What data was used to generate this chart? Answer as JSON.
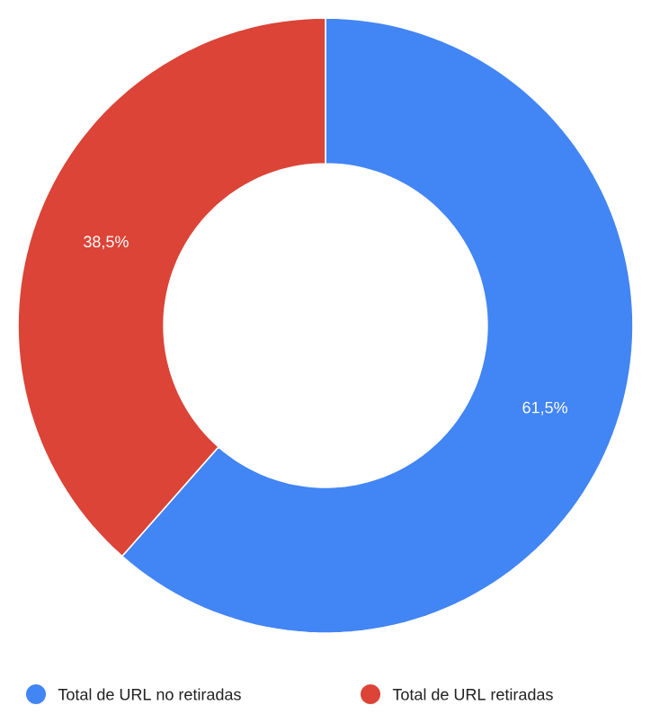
{
  "chart_data": {
    "type": "donut",
    "categories": [
      "Total de URL no retiradas",
      "Total de URL retiradas"
    ],
    "values": [
      61.5,
      38.5
    ],
    "colors": [
      "#4285f4",
      "#db4437"
    ],
    "value_labels": [
      "61,5%",
      "38,5%"
    ],
    "legend": "bottom"
  }
}
